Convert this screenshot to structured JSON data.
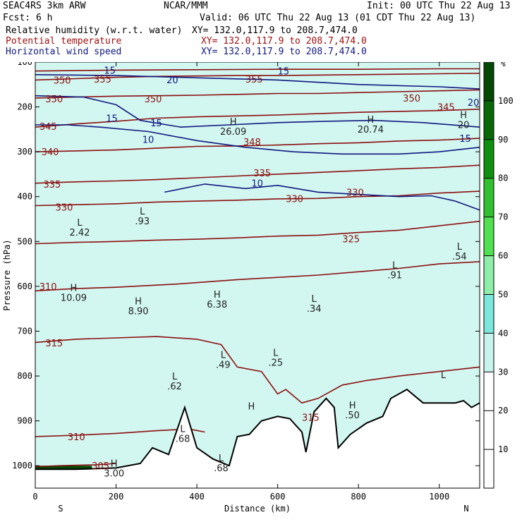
{
  "header": {
    "line1_left": "SEAC4RS  3km ARW",
    "line1_mid": "NCAR/MMM",
    "line1_right": "Init: 00 UTC Thu 22 Aug 13",
    "line2_left": "Fcst:     6 h",
    "line2_right": "Valid: 06 UTC Thu 22 Aug 13 (01 CDT Thu 22 Aug 13)",
    "fields": [
      {
        "name": "Relative humidity (w.r.t. water)",
        "xy": "XY= 132.0,117.9 to 208.7,474.0",
        "color": "#000000"
      },
      {
        "name": "Potential temperature",
        "xy": "XY= 132.0,117.9 to 208.7,474.0",
        "color": "#a01010"
      },
      {
        "name": "Horizontal wind speed",
        "xy": "XY= 132.0,117.9 to 208.7,474.0",
        "color": "#101880"
      }
    ]
  },
  "chart_data": {
    "type": "cross-section",
    "xlabel": "Distance (km)",
    "ylabel": "Pressure (hPa)",
    "xlim": [
      0,
      1100
    ],
    "ylim": [
      1050,
      100
    ],
    "x_ticks": [
      0,
      200,
      400,
      600,
      800,
      1000
    ],
    "x_tick_labels": [
      "0",
      "200",
      "400",
      "600",
      "800",
      "1000"
    ],
    "y_ticks": [
      100,
      200,
      300,
      400,
      500,
      600,
      700,
      800,
      900,
      1000
    ],
    "y_tick_labels": [
      "100",
      "200",
      "300",
      "400",
      "500",
      "600",
      "700",
      "800",
      "900",
      "1000"
    ],
    "end_labels": {
      "left": "S",
      "right": "N"
    },
    "colorbar": {
      "unit": "%",
      "levels": [
        10,
        20,
        30,
        40,
        50,
        60,
        70,
        80,
        90,
        100
      ],
      "labels": [
        "10",
        "20",
        "30",
        "40",
        "50",
        "60",
        "70",
        "80",
        "90",
        "100"
      ],
      "colors": [
        "#ffffff",
        "#ffffff",
        "#ffffff",
        "#c8f4ee",
        "#7ce8dc",
        "#8eeea8",
        "#50e050",
        "#30c030",
        "#109010",
        "#086808",
        "#044804"
      ]
    },
    "colors": {
      "theta": "#8b1010",
      "wind": "#101880",
      "terrain": "#000000",
      "fill_bg": "#d2f6f0"
    },
    "theta_contours": [
      {
        "label": "305",
        "points": [
          [
            0,
            1002
          ],
          [
            60,
            1000
          ],
          [
            150,
            998
          ],
          [
            200,
            995
          ]
        ]
      },
      {
        "label": "310",
        "points": [
          [
            0,
            935
          ],
          [
            100,
            932
          ],
          [
            200,
            928
          ],
          [
            300,
            922
          ],
          [
            380,
            918
          ],
          [
            420,
            925
          ]
        ]
      },
      {
        "label": "310",
        "points": [
          [
            0,
            610
          ],
          [
            100,
            605
          ],
          [
            200,
            602
          ],
          [
            350,
            595
          ],
          [
            500,
            585
          ],
          [
            700,
            575
          ],
          [
            900,
            560
          ],
          [
            1000,
            550
          ],
          [
            1100,
            545
          ]
        ]
      },
      {
        "label": "315",
        "points": [
          [
            0,
            725
          ],
          [
            100,
            718
          ],
          [
            200,
            715
          ],
          [
            300,
            712
          ],
          [
            400,
            718
          ],
          [
            460,
            730
          ],
          [
            500,
            780
          ],
          [
            560,
            790
          ],
          [
            600,
            840
          ],
          [
            620,
            830
          ],
          [
            660,
            860
          ],
          [
            700,
            850
          ],
          [
            760,
            820
          ],
          [
            820,
            810
          ],
          [
            900,
            800
          ],
          [
            1000,
            790
          ],
          [
            1100,
            780
          ]
        ]
      },
      {
        "label": "325",
        "points": [
          [
            0,
            505
          ],
          [
            100,
            502
          ],
          [
            200,
            500
          ],
          [
            300,
            497
          ],
          [
            400,
            495
          ],
          [
            500,
            492
          ],
          [
            600,
            488
          ],
          [
            700,
            486
          ],
          [
            800,
            480
          ],
          [
            900,
            475
          ],
          [
            1000,
            465
          ],
          [
            1100,
            455
          ]
        ]
      },
      {
        "label": "330",
        "points": [
          [
            0,
            420
          ],
          [
            100,
            418
          ],
          [
            200,
            416
          ],
          [
            300,
            412
          ],
          [
            400,
            410
          ],
          [
            500,
            408
          ],
          [
            600,
            405
          ],
          [
            700,
            404
          ],
          [
            800,
            400
          ],
          [
            900,
            398
          ],
          [
            1000,
            392
          ],
          [
            1100,
            388
          ]
        ]
      },
      {
        "label": "335",
        "points": [
          [
            0,
            370
          ],
          [
            100,
            367
          ],
          [
            200,
            365
          ],
          [
            300,
            362
          ],
          [
            400,
            358
          ],
          [
            500,
            354
          ],
          [
            600,
            350
          ],
          [
            700,
            346
          ],
          [
            800,
            342
          ],
          [
            900,
            338
          ],
          [
            1000,
            335
          ],
          [
            1100,
            330
          ]
        ]
      },
      {
        "label": "340",
        "points": [
          [
            0,
            300
          ],
          [
            100,
            298
          ],
          [
            200,
            296
          ],
          [
            300,
            292
          ],
          [
            400,
            288
          ],
          [
            500,
            287
          ],
          [
            600,
            285
          ],
          [
            700,
            282
          ],
          [
            800,
            280
          ],
          [
            900,
            276
          ],
          [
            1000,
            274
          ],
          [
            1100,
            270
          ]
        ]
      },
      {
        "label": "345",
        "points": [
          [
            0,
            245
          ],
          [
            100,
            238
          ],
          [
            200,
            232
          ],
          [
            300,
            225
          ],
          [
            400,
            222
          ],
          [
            500,
            220
          ],
          [
            600,
            218
          ],
          [
            700,
            215
          ],
          [
            800,
            212
          ],
          [
            900,
            210
          ],
          [
            1000,
            208
          ],
          [
            1100,
            205
          ]
        ]
      },
      {
        "label": "350",
        "points": [
          [
            0,
            180
          ],
          [
            100,
            178
          ],
          [
            200,
            176
          ],
          [
            300,
            175
          ],
          [
            400,
            174
          ],
          [
            500,
            172
          ],
          [
            600,
            170
          ],
          [
            700,
            170
          ],
          [
            800,
            168
          ],
          [
            900,
            166
          ],
          [
            1000,
            164
          ],
          [
            1100,
            162
          ]
        ]
      },
      {
        "label": "350",
        "points": [
          [
            0,
            140
          ],
          [
            100,
            137
          ],
          [
            200,
            134
          ],
          [
            300,
            132
          ],
          [
            400,
            131
          ],
          [
            500,
            130
          ],
          [
            600,
            130
          ],
          [
            700,
            129
          ],
          [
            800,
            128
          ],
          [
            900,
            127
          ],
          [
            1000,
            126
          ],
          [
            1100,
            125
          ]
        ]
      },
      {
        "label": "355",
        "points": [
          [
            0,
            120
          ],
          [
            200,
            118
          ],
          [
            400,
            117
          ],
          [
            600,
            116
          ],
          [
            800,
            116
          ],
          [
            1000,
            115
          ],
          [
            1100,
            115
          ]
        ]
      }
    ],
    "theta_labels": [
      {
        "text": "305",
        "x": 140,
        "y": 1000
      },
      {
        "text": "310",
        "x": 80,
        "y": 935
      },
      {
        "text": "310",
        "x": 10,
        "y": 600
      },
      {
        "text": "315",
        "x": 25,
        "y": 726
      },
      {
        "text": "315",
        "x": 660,
        "y": 892
      },
      {
        "text": "325",
        "x": 760,
        "y": 494
      },
      {
        "text": "330",
        "x": 620,
        "y": 404
      },
      {
        "text": "330",
        "x": 770,
        "y": 390
      },
      {
        "text": "330",
        "x": 50,
        "y": 423
      },
      {
        "text": "335",
        "x": 20,
        "y": 372
      },
      {
        "text": "335",
        "x": 540,
        "y": 347
      },
      {
        "text": "340",
        "x": 15,
        "y": 300
      },
      {
        "text": "345",
        "x": 10,
        "y": 243
      },
      {
        "text": "350",
        "x": 25,
        "y": 182
      },
      {
        "text": "350",
        "x": 45,
        "y": 140
      },
      {
        "text": "350",
        "x": 270,
        "y": 182
      },
      {
        "text": "350",
        "x": 910,
        "y": 180
      },
      {
        "text": "355",
        "x": 145,
        "y": 138
      },
      {
        "text": "355",
        "x": 520,
        "y": 138
      },
      {
        "text": "345",
        "x": 995,
        "y": 200
      },
      {
        "text": "348",
        "x": 515,
        "y": 278
      }
    ],
    "wind_contours": [
      {
        "label": "10",
        "points": [
          [
            0,
            240
          ],
          [
            80,
            240
          ],
          [
            160,
            245
          ],
          [
            280,
            255
          ],
          [
            400,
            275
          ],
          [
            520,
            290
          ],
          [
            640,
            300
          ],
          [
            760,
            305
          ],
          [
            900,
            305
          ],
          [
            1000,
            300
          ],
          [
            1100,
            290
          ]
        ]
      },
      {
        "label": "15",
        "points": [
          [
            0,
            175
          ],
          [
            120,
            178
          ],
          [
            200,
            195
          ],
          [
            260,
            230
          ],
          [
            360,
            245
          ],
          [
            480,
            240
          ],
          [
            600,
            235
          ],
          [
            720,
            232
          ],
          [
            840,
            230
          ],
          [
            960,
            235
          ],
          [
            1100,
            245
          ]
        ]
      },
      {
        "label": "10",
        "points": [
          [
            0,
            128
          ],
          [
            200,
            130
          ],
          [
            400,
            135
          ],
          [
            600,
            140
          ],
          [
            800,
            150
          ],
          [
            1000,
            155
          ],
          [
            1100,
            160
          ]
        ]
      },
      {
        "label": "10",
        "points": [
          [
            320,
            390
          ],
          [
            420,
            372
          ],
          [
            520,
            382
          ],
          [
            600,
            375
          ],
          [
            700,
            390
          ],
          [
            800,
            395
          ],
          [
            900,
            400
          ],
          [
            980,
            398
          ],
          [
            1040,
            410
          ],
          [
            1100,
            430
          ]
        ]
      }
    ],
    "wind_labels": [
      {
        "text": "15",
        "x": 175,
        "y": 225
      },
      {
        "text": "15",
        "x": 285,
        "y": 235
      },
      {
        "text": "10",
        "x": 265,
        "y": 272
      },
      {
        "text": "10",
        "x": 535,
        "y": 370
      },
      {
        "text": "15",
        "x": 1050,
        "y": 270
      },
      {
        "text": "20",
        "x": 325,
        "y": 139
      },
      {
        "text": "15",
        "x": 170,
        "y": 118
      },
      {
        "text": "15",
        "x": 600,
        "y": 120
      },
      {
        "text": "20",
        "x": 1070,
        "y": 190
      }
    ],
    "hl_markers": [
      {
        "kind": "L",
        "value": "2.42",
        "x": 110,
        "y": 465
      },
      {
        "kind": "L",
        "value": ".93",
        "x": 265,
        "y": 440
      },
      {
        "kind": "H",
        "value": "10.09",
        "x": 95,
        "y": 610
      },
      {
        "kind": "H",
        "value": "8.90",
        "x": 255,
        "y": 640
      },
      {
        "kind": "H",
        "value": "6.38",
        "x": 450,
        "y": 625
      },
      {
        "kind": "L",
        "value": ".34",
        "x": 690,
        "y": 635
      },
      {
        "kind": "L",
        "value": ".91",
        "x": 890,
        "y": 560
      },
      {
        "kind": "L",
        "value": ".54",
        "x": 1050,
        "y": 518
      },
      {
        "kind": "L",
        "value": ".49",
        "x": 465,
        "y": 760
      },
      {
        "kind": "L",
        "value": ".25",
        "x": 595,
        "y": 755
      },
      {
        "kind": "L",
        "value": ".62",
        "x": 345,
        "y": 808
      },
      {
        "kind": "L",
        "value": ".68",
        "x": 365,
        "y": 925
      },
      {
        "kind": "L",
        "value": ".68",
        "x": 460,
        "y": 990
      },
      {
        "kind": "H",
        "value": ".50",
        "x": 785,
        "y": 872
      },
      {
        "kind": "H",
        "value": "",
        "x": 535,
        "y": 875
      },
      {
        "kind": "L",
        "value": "",
        "x": 1010,
        "y": 805
      },
      {
        "kind": "H",
        "value": "3.00",
        "x": 195,
        "y": 1002
      },
      {
        "kind": "H",
        "value": "26.09",
        "x": 490,
        "y": 240
      },
      {
        "kind": "H",
        "value": "20.74",
        "x": 830,
        "y": 235
      },
      {
        "kind": "H",
        "value": "20",
        "x": 1060,
        "y": 225
      }
    ],
    "rh_regions": [
      {
        "rh": 100,
        "points": [
          [
            0,
            1000
          ],
          [
            140,
            1000
          ],
          [
            140,
            1015
          ],
          [
            0,
            1015
          ]
        ]
      }
    ],
    "terrain": [
      [
        0,
        1008
      ],
      [
        100,
        1008
      ],
      [
        200,
        1005
      ],
      [
        260,
        995
      ],
      [
        290,
        960
      ],
      [
        330,
        975
      ],
      [
        370,
        870
      ],
      [
        400,
        960
      ],
      [
        440,
        985
      ],
      [
        480,
        1000
      ],
      [
        500,
        935
      ],
      [
        530,
        930
      ],
      [
        560,
        900
      ],
      [
        600,
        890
      ],
      [
        630,
        895
      ],
      [
        660,
        925
      ],
      [
        670,
        970
      ],
      [
        690,
        880
      ],
      [
        720,
        850
      ],
      [
        740,
        870
      ],
      [
        750,
        960
      ],
      [
        780,
        930
      ],
      [
        820,
        905
      ],
      [
        860,
        890
      ],
      [
        880,
        850
      ],
      [
        920,
        830
      ],
      [
        960,
        860
      ],
      [
        1000,
        860
      ],
      [
        1040,
        860
      ],
      [
        1060,
        855
      ],
      [
        1080,
        870
      ],
      [
        1100,
        860
      ]
    ]
  }
}
